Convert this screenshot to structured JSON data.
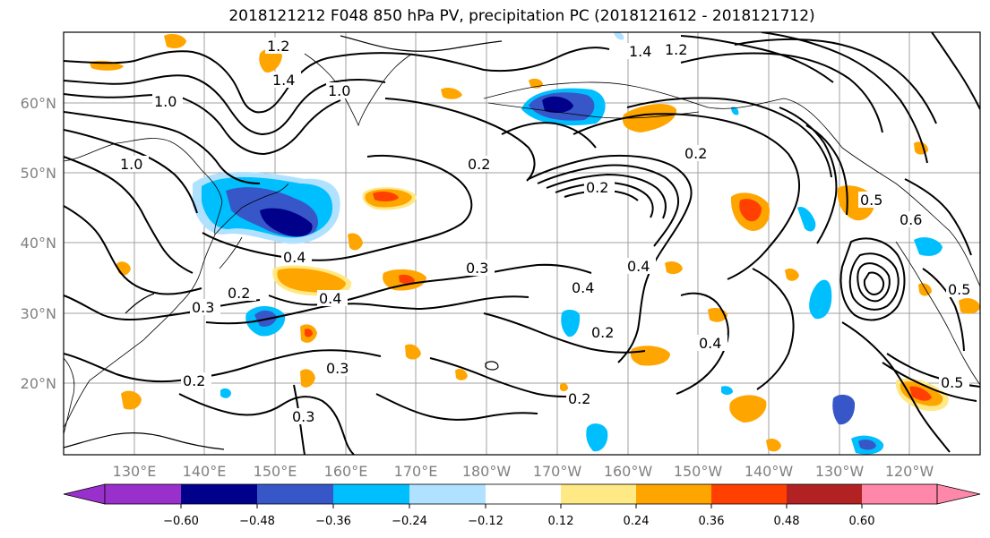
{
  "title": "2018121212 F048 850 hPa PV, precipitation PC (2018121612 - 2018121712)",
  "lat_labels": [
    "60°N",
    "50°N",
    "40°N",
    "30°N",
    "20°N"
  ],
  "lon_labels": [
    "130°E",
    "140°E",
    "150°E",
    "160°E",
    "170°E",
    "180°W",
    "170°W",
    "160°W",
    "150°W",
    "140°W",
    "130°W",
    "120°W"
  ],
  "contour_labels": [
    "1.2",
    "1.4",
    "1.0",
    "1.4",
    "1.2",
    "1.0",
    "1.0",
    "0.2",
    "0.2",
    "0.4",
    "0.3",
    "0.2",
    "0.3",
    "0.4",
    "0.3",
    "0.2",
    "0.3",
    "0.4",
    "0.4",
    "0.2",
    "0.2",
    "0.4",
    "0.6",
    "0.2",
    "0.5",
    "0.5",
    "0.5"
  ],
  "colorbar": {
    "ticks": [
      "−0.60",
      "−0.48",
      "−0.36",
      "−0.24",
      "−0.12",
      "0.12",
      "0.24",
      "0.36",
      "0.48",
      "0.60"
    ],
    "colors": [
      "#9a30cc",
      "#00008b",
      "#3757c8",
      "#00bfff",
      "#b0e2ff",
      "#ffffff",
      "#ffe985",
      "#ffa500",
      "#ff4000",
      "#b22222",
      "#ff88aa"
    ]
  },
  "colors": {
    "neg_light": "#b0e2ff",
    "neg_mid": "#00bfff",
    "neg_strong": "#3757c8",
    "neg_max": "#00008b",
    "pos_light": "#ffe985",
    "pos_mid": "#ffa500",
    "pos_strong": "#ff4000",
    "pos_max": "#b22222",
    "grid": "#a0a0a0",
    "axis_label": "#808080"
  }
}
